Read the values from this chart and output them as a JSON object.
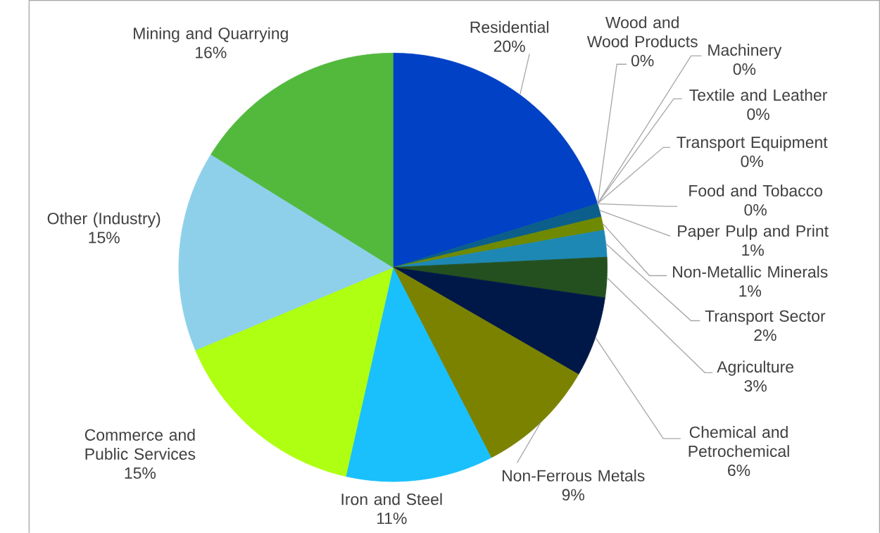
{
  "chart_data": {
    "type": "pie",
    "categories": [
      "Residential",
      "Wood and Wood Products",
      "Machinery",
      "Textile and Leather",
      "Transport Equipment",
      "Food and Tobacco",
      "Paper Pulp and Print",
      "Non-Metallic Minerals",
      "Transport Sector",
      "Agriculture",
      "Chemical and Petrochemical",
      "Non-Ferrous Metals",
      "Iron and Steel",
      "Commerce and Public Services",
      "Other (Industry)",
      "Mining and Quarrying"
    ],
    "values": [
      20,
      0,
      0,
      0,
      0,
      0,
      1,
      1,
      2,
      3,
      6,
      9,
      11,
      15,
      15,
      16
    ],
    "value_labels": [
      "20%",
      "0%",
      "0%",
      "0%",
      "0%",
      "0%",
      "1%",
      "1%",
      "2%",
      "3%",
      "6%",
      "9%",
      "11%",
      "15%",
      "15%",
      "16%"
    ],
    "colors": [
      "#0041c6",
      "#2e75b6",
      "#5b9bd5",
      "#9dc3e6",
      "#70ad47",
      "#d9f000",
      "#0b5f8a",
      "#6f8a00",
      "#1e88b4",
      "#24501f",
      "#001848",
      "#7b8200",
      "#19c0fc",
      "#aeff12",
      "#8ed0ea",
      "#52b93d"
    ]
  }
}
